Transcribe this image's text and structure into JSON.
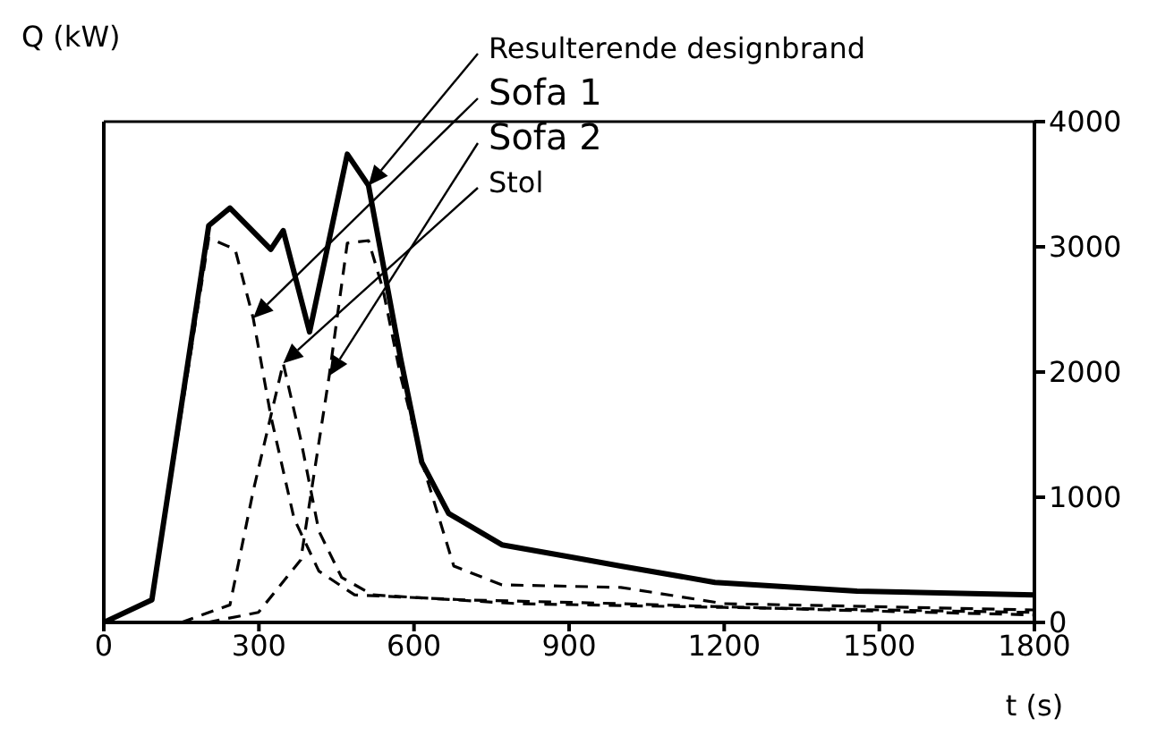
{
  "chart_data": {
    "type": "line",
    "xlabel": "t (s)",
    "ylabel": "Q (kW)",
    "xlim": [
      0,
      1800
    ],
    "xticks": [
      0,
      300,
      600,
      900,
      1200,
      1500,
      1800
    ],
    "ylim": [
      0,
      4000
    ],
    "yticks": [
      0,
      1000,
      2000,
      3000,
      4000
    ],
    "marker": "none",
    "series": [
      {
        "name": "Resulterende designbrand",
        "color": "#000000",
        "line_style": "solid",
        "x": [
          0,
          93,
          203,
          244,
          323,
          347,
          398,
          471,
          512,
          574,
          615,
          667,
          770,
          907,
          1000,
          1182,
          1457,
          1800
        ],
        "values": [
          0,
          180,
          3170,
          3310,
          2980,
          3130,
          2320,
          3740,
          3490,
          2110,
          1280,
          870,
          620,
          520,
          450,
          320,
          250,
          220
        ]
      },
      {
        "name": "Sofa 1",
        "color": "#000000",
        "line_style": "dashed",
        "x": [
          0,
          93,
          203,
          254,
          289,
          323,
          368,
          416,
          485,
          700,
          1000,
          1400,
          1800
        ],
        "values": [
          0,
          180,
          3070,
          2980,
          2430,
          1650,
          830,
          410,
          220,
          180,
          150,
          100,
          60
        ]
      },
      {
        "name": "Sofa 2",
        "color": "#000000",
        "line_style": "dashed",
        "x": [
          200,
          299,
          381,
          436,
          471,
          512,
          540,
          574,
          622,
          677,
          770,
          1000,
          1200,
          1800
        ],
        "values": [
          0,
          80,
          500,
          1970,
          3030,
          3050,
          2660,
          1970,
          1190,
          450,
          300,
          280,
          150,
          100
        ]
      },
      {
        "name": "Stol",
        "color": "#000000",
        "line_style": "dashed",
        "x": [
          150,
          244,
          289,
          347,
          381,
          416,
          460,
          520,
          800,
          1200,
          1800
        ],
        "values": [
          0,
          140,
          1050,
          2070,
          1460,
          730,
          360,
          220,
          150,
          120,
          80
        ]
      }
    ]
  }
}
